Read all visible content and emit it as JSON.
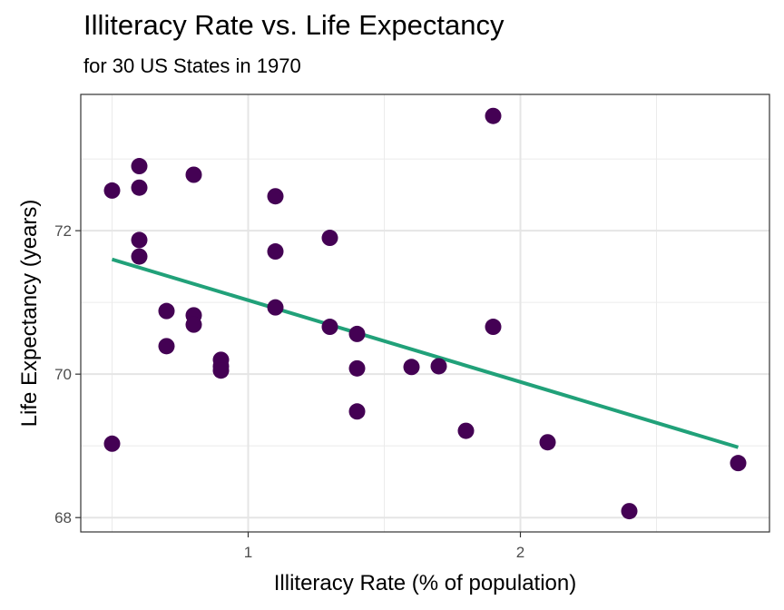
{
  "chart_data": {
    "type": "scatter",
    "title": "Illiteracy Rate vs. Life Expectancy",
    "subtitle": "for 30 US States in 1970",
    "xlabel": "Illiteracy Rate (% of population)",
    "ylabel": "Life Expectancy (years)",
    "xlim": [
      0.385,
      2.915
    ],
    "ylim": [
      67.8,
      73.9
    ],
    "x_ticks": [
      1,
      2
    ],
    "x_tick_labels": [
      "1",
      "2"
    ],
    "y_ticks": [
      68,
      70,
      72
    ],
    "y_tick_labels": [
      "68",
      "70",
      "72"
    ],
    "x_minor_ticks": [
      0.5,
      1.5,
      2.5
    ],
    "y_minor_ticks": [
      69,
      71,
      73
    ],
    "grid": true,
    "legend": "none",
    "point_color": "#440154",
    "trend_color": "#21A179",
    "points": [
      {
        "x": 0.5,
        "y": 72.56
      },
      {
        "x": 0.5,
        "y": 69.03
      },
      {
        "x": 0.6,
        "y": 72.9
      },
      {
        "x": 0.6,
        "y": 72.6
      },
      {
        "x": 0.6,
        "y": 71.87
      },
      {
        "x": 0.6,
        "y": 71.64
      },
      {
        "x": 0.7,
        "y": 70.88
      },
      {
        "x": 0.7,
        "y": 70.39
      },
      {
        "x": 0.8,
        "y": 72.78
      },
      {
        "x": 0.8,
        "y": 70.82
      },
      {
        "x": 0.8,
        "y": 70.69
      },
      {
        "x": 0.9,
        "y": 70.2
      },
      {
        "x": 0.9,
        "y": 70.11
      },
      {
        "x": 0.9,
        "y": 70.05
      },
      {
        "x": 1.1,
        "y": 72.48
      },
      {
        "x": 1.1,
        "y": 71.71
      },
      {
        "x": 1.1,
        "y": 70.93
      },
      {
        "x": 1.3,
        "y": 71.9
      },
      {
        "x": 1.3,
        "y": 70.66
      },
      {
        "x": 1.4,
        "y": 70.56
      },
      {
        "x": 1.4,
        "y": 70.08
      },
      {
        "x": 1.4,
        "y": 69.48
      },
      {
        "x": 1.6,
        "y": 70.1
      },
      {
        "x": 1.7,
        "y": 70.11
      },
      {
        "x": 1.8,
        "y": 69.21
      },
      {
        "x": 1.9,
        "y": 73.6
      },
      {
        "x": 1.9,
        "y": 70.66
      },
      {
        "x": 2.1,
        "y": 69.05
      },
      {
        "x": 2.4,
        "y": 68.09
      },
      {
        "x": 2.8,
        "y": 68.76
      }
    ],
    "trend_line": {
      "x": [
        0.5,
        2.8
      ],
      "y": [
        71.6,
        68.98
      ]
    }
  }
}
